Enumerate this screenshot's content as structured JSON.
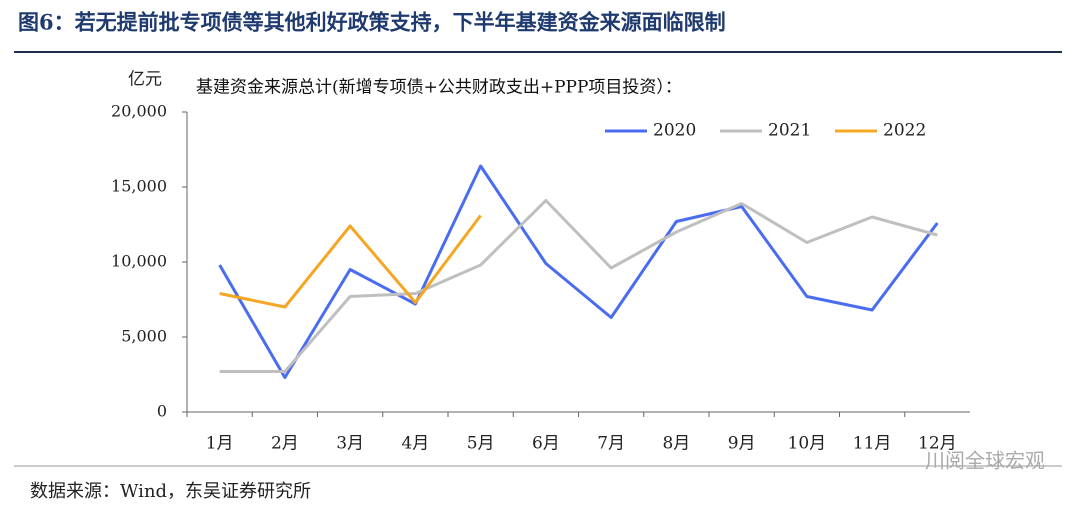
{
  "figure_title": "图6：若无提前批专项债等其他利好政策支持，下半年基建资金来源面临限制",
  "source": "数据来源：Wind，东吴证券研究所",
  "watermark": "川阅全球宏观",
  "chart_data": {
    "type": "line",
    "title": "基建资金来源总计(新增专项债+公共财政支出+PPP项目投资）：",
    "y_label": "亿元",
    "categories": [
      "1月",
      "2月",
      "3月",
      "4月",
      "5月",
      "6月",
      "7月",
      "8月",
      "9月",
      "10月",
      "11月",
      "12月"
    ],
    "series": [
      {
        "name": "2020",
        "color": "#4a6cf0",
        "values": [
          9800,
          2300,
          9500,
          7200,
          16400,
          9900,
          6300,
          12700,
          13700,
          7700,
          6800,
          12600
        ]
      },
      {
        "name": "2021",
        "color": "#bfbfbf",
        "values": [
          2700,
          2700,
          7700,
          7900,
          9800,
          14100,
          9600,
          12000,
          13900,
          11300,
          13000,
          11800
        ]
      },
      {
        "name": "2022",
        "color": "#f5a623",
        "values": [
          7900,
          7000,
          12400,
          7300,
          13100,
          null,
          null,
          null,
          null,
          null,
          null,
          null
        ]
      }
    ],
    "ylim": [
      0,
      20000
    ],
    "yticks": [
      0,
      {
        "value": 5000,
        "label": "5,000"
      },
      {
        "value": 10000,
        "label": "10,000"
      },
      {
        "value": 15000,
        "label": "15,000"
      },
      {
        "value": 20000,
        "label": "20,000"
      }
    ],
    "legend": "upper right",
    "grid": false
  }
}
